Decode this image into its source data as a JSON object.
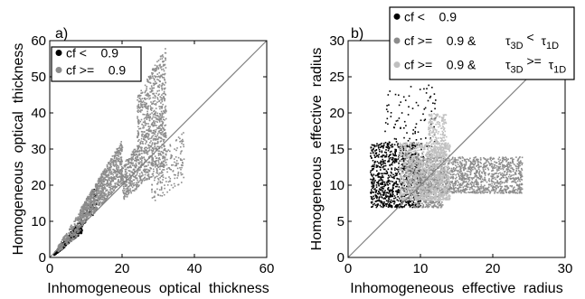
{
  "chart_data": [
    {
      "type": "scatter",
      "panel_label": "a)",
      "xlabel": "Inhomogeneous  optical  thickness",
      "ylabel": "Homogeneous  optical  thickness",
      "xlim": [
        0,
        60
      ],
      "ylim": [
        0,
        60
      ],
      "xticks": [
        "0",
        "20",
        "40",
        "60"
      ],
      "yticks": [
        "0",
        "10",
        "20",
        "30",
        "40",
        "50",
        "60"
      ],
      "one_to_one_line": true,
      "legend_position": "top-left",
      "series": [
        {
          "name": "cf <    0.9",
          "color": "#000000",
          "cloud": [
            {
              "x": [
                1,
                4
              ],
              "slope": [
                0.75,
                1.25
              ],
              "n": 250
            },
            {
              "x": [
                4,
                9
              ],
              "slope": [
                0.8,
                1.3
              ],
              "n": 160
            },
            {
              "x": [
                9,
                13
              ],
              "slope": [
                1.0,
                1.6
              ],
              "n": 80
            }
          ]
        },
        {
          "name": "cf >=    0.9",
          "color": "#8c8c8c",
          "cloud": [
            {
              "x": [
                2,
                8
              ],
              "slope": [
                0.8,
                1.6
              ],
              "n": 220
            },
            {
              "x": [
                8,
                20
              ],
              "slope": [
                1.05,
                1.65
              ],
              "n": 900
            },
            {
              "x": [
                20,
                32
              ],
              "slope": [
                0.8,
                1.3
              ],
              "n": 700
            },
            {
              "x": [
                24,
                32
              ],
              "slope": [
                1.25,
                1.85
              ],
              "n": 450
            },
            {
              "x": [
                28,
                37
              ],
              "slope": [
                0.55,
                0.95
              ],
              "n": 180
            }
          ]
        }
      ]
    },
    {
      "type": "scatter",
      "panel_label": "b)",
      "xlabel": "Inhomogeneous  effective  radius",
      "ylabel": "Homogeneous  effective  radius",
      "xlim": [
        0,
        30
      ],
      "ylim": [
        0,
        30
      ],
      "xticks": [
        "0",
        "10",
        "20",
        "30"
      ],
      "yticks": [
        "0",
        "5",
        "10",
        "15",
        "20",
        "25",
        "30"
      ],
      "one_to_one_line": true,
      "legend_position": "top-center",
      "series": [
        {
          "name": "cf <    0.9",
          "color": "#000000",
          "cloud": [
            {
              "x": [
                3,
                10
              ],
              "y": [
                7,
                16
              ],
              "n": 900
            },
            {
              "x": [
                5,
                12
              ],
              "y": [
                14,
                24
              ],
              "n": 120
            }
          ]
        },
        {
          "name": "cf >=    0.9 &",
          "tau_condition": [
            "τ",
            "3D",
            " <",
            "τ",
            "1D"
          ],
          "color": "#8c8c8c",
          "cloud": [
            {
              "x": [
                8,
                24
              ],
              "y": [
                9,
                14
              ],
              "n": 1500
            },
            {
              "x": [
                9,
                13
              ],
              "y": [
                7,
                12
              ],
              "n": 300
            }
          ]
        },
        {
          "name": "cf >=    0.9 &",
          "tau_condition": [
            "τ",
            "3D",
            " >=",
            "τ",
            "1D"
          ],
          "color": "#c0c0c0",
          "cloud": [
            {
              "x": [
                7,
                14
              ],
              "y": [
                8,
                16
              ],
              "n": 1200
            },
            {
              "x": [
                11,
                13.5
              ],
              "y": [
                14,
                20
              ],
              "n": 250
            }
          ]
        }
      ]
    }
  ]
}
